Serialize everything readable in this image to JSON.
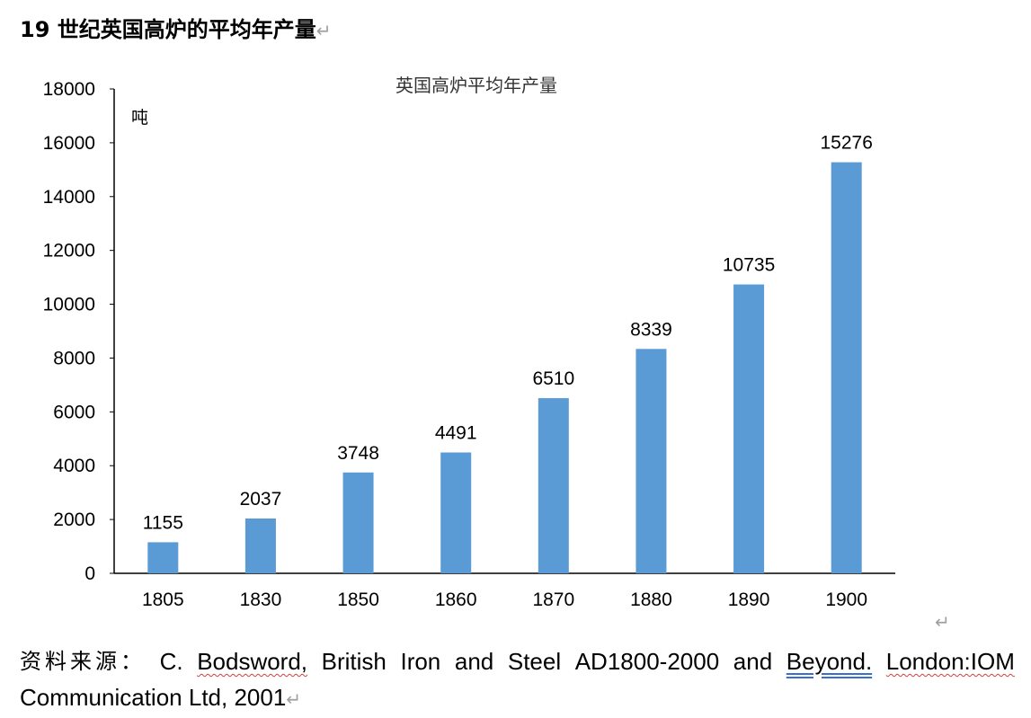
{
  "document": {
    "heading": "19 世纪英国高炉的平均年产量",
    "paragraph_mark": "↵"
  },
  "chart_data": {
    "type": "bar",
    "title": "英国高炉平均年产量",
    "unit_label": "吨",
    "categories": [
      "1805",
      "1830",
      "1850",
      "1860",
      "1870",
      "1880",
      "1890",
      "1900"
    ],
    "values": [
      1155,
      2037,
      3748,
      4491,
      6510,
      8339,
      10735,
      15276
    ],
    "ylim": [
      0,
      18000
    ],
    "yticks": [
      0,
      2000,
      4000,
      6000,
      8000,
      10000,
      12000,
      14000,
      16000,
      18000
    ],
    "xlabel": "",
    "ylabel": "吨",
    "bar_color": "#5b9bd5",
    "grid": false
  },
  "source": {
    "prefix": "资料来源：",
    "line1_words": [
      "C.",
      "Bodsword,",
      "British",
      "Iron",
      "and",
      "Steel",
      "AD1800-2000",
      "and",
      "Beyond.",
      "London:IOM"
    ],
    "line2": "Communication Ltd, 2001"
  }
}
